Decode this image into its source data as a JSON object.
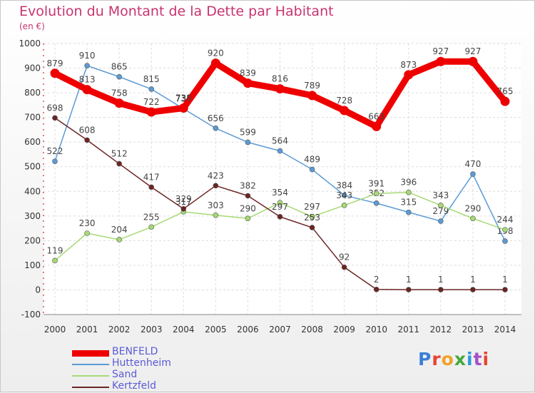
{
  "title": "Evolution du Montant de la Dette par Habitant",
  "subtitle": "(en €)",
  "logo": {
    "text": "Proxiti",
    "letter_colors": [
      "#3a7fd5",
      "#e8442e",
      "#f0a22a",
      "#45a83b",
      "#2b9bd8",
      "#a64fc6",
      "#e8442e"
    ]
  },
  "chart_data": {
    "type": "line",
    "title": "Evolution du Montant de la Dette par Habitant",
    "subtitle": "(en €)",
    "x": [
      "2000",
      "2001",
      "2002",
      "2003",
      "2004",
      "2005",
      "2006",
      "2007",
      "2008",
      "2009",
      "2010",
      "2011",
      "2012",
      "2013",
      "2014"
    ],
    "ylim": [
      -100,
      1000
    ],
    "yticks": [
      "-100",
      "0",
      "100",
      "200",
      "300",
      "400",
      "500",
      "600",
      "700",
      "800",
      "900",
      "1000"
    ],
    "grid": true,
    "legend_position": "bottom-left",
    "series": [
      {
        "name": "BENFELD",
        "color": "#ee0000",
        "emphasis": true,
        "values": [
          879,
          813,
          758,
          722,
          738,
          920,
          839,
          816,
          789,
          728,
          663,
          873,
          927,
          927,
          765
        ],
        "labels": [
          "879",
          "813",
          "758",
          "722",
          "738",
          "920",
          "839",
          "816",
          "789",
          "728",
          "663",
          "873",
          "927",
          "927",
          "765"
        ]
      },
      {
        "name": "Huttenheim",
        "color": "#5b9bd5",
        "emphasis": false,
        "values": [
          522,
          910,
          865,
          815,
          735,
          656,
          599,
          564,
          489,
          384,
          352,
          315,
          279,
          470,
          198
        ],
        "labels": [
          "522",
          "910",
          "865",
          "815",
          "735",
          "656",
          "599",
          "564",
          "489",
          "384",
          "352",
          "315",
          "279",
          "470",
          "198"
        ]
      },
      {
        "name": "Sand",
        "color": "#a6da74",
        "emphasis": false,
        "values": [
          119,
          230,
          204,
          255,
          317,
          303,
          290,
          354,
          297,
          343,
          391,
          396,
          343,
          290,
          244
        ],
        "labels": [
          "119",
          "230",
          "204",
          "255",
          "317",
          "303",
          "290",
          "354",
          "297",
          "343",
          "391",
          "396",
          "343",
          "290",
          "244"
        ]
      },
      {
        "name": "Kertzfeld",
        "color": "#6b2424",
        "emphasis": false,
        "values": [
          698,
          608,
          512,
          417,
          329,
          423,
          382,
          297,
          253,
          92,
          2,
          1,
          1,
          1,
          1
        ],
        "labels": [
          "698",
          "608",
          "512",
          "417",
          "329",
          "423",
          "382",
          "297",
          "253",
          "92",
          "2",
          "1",
          "1",
          "1",
          "1"
        ]
      }
    ]
  }
}
